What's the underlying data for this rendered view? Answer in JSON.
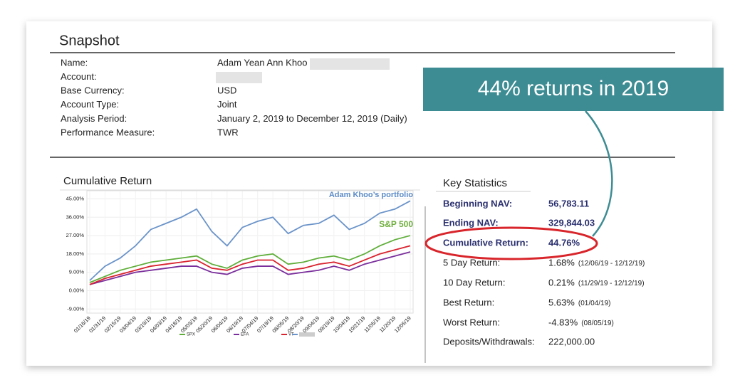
{
  "snapshot": {
    "title": "Snapshot",
    "fields": [
      {
        "label": "Name:",
        "value": "Adam Yean Ann Khoo"
      },
      {
        "label": "Account:"
      },
      {
        "label": "Base Currency:",
        "value": "USD"
      },
      {
        "label": "Account Type:",
        "value": "Joint"
      },
      {
        "label": "Analysis Period:",
        "value": "January 2, 2019 to December 12, 2019 (Daily)"
      },
      {
        "label": "Performance Measure:",
        "value": "TWR"
      }
    ]
  },
  "callout": "44% returns in 2019",
  "key_statistics": {
    "title": "Key Statistics",
    "rows": [
      {
        "label": "Beginning NAV:",
        "value": "56,783.11"
      },
      {
        "label": "Ending NAV:",
        "value": "329,844.03"
      },
      {
        "label": "Cumulative Return:",
        "value": "44.76%"
      },
      {
        "label": "5 Day Return:",
        "value": "1.68%",
        "note": "(12/06/19 - 12/12/19)"
      },
      {
        "label": "10 Day Return:",
        "value": "0.21%",
        "note": "(11/29/19 - 12/12/19)"
      },
      {
        "label": "Best Return:",
        "value": "5.63%",
        "note": "(01/04/19)"
      },
      {
        "label": "Worst Return:",
        "value": "-4.83%",
        "note": "(08/05/19)"
      },
      {
        "label": "Deposits/Withdrawals:",
        "value": "222,000.00"
      }
    ]
  },
  "chart_data": {
    "type": "line",
    "title": "Cumulative Return",
    "annotations": [
      {
        "text": "Adam Khoo’s portfolio",
        "color": "#5b8ac6"
      },
      {
        "text": "S&P 500",
        "color": "#6fae3e"
      }
    ],
    "x": [
      "01/16/19",
      "01/31/19",
      "02/15/19",
      "03/04/19",
      "03/19/19",
      "04/03/19",
      "04/18/19",
      "05/03/19",
      "05/20/19",
      "06/04/19",
      "06/19/19",
      "07/04/19",
      "07/19/19",
      "08/05/19",
      "08/20/19",
      "09/04/19",
      "09/19/19",
      "10/04/19",
      "10/21/19",
      "11/05/19",
      "11/20/19",
      "12/05/19"
    ],
    "ylim": [
      -11,
      49
    ],
    "yticks": [
      {
        "value": 45,
        "label": "45.00%"
      },
      {
        "value": 36,
        "label": "36.00%"
      },
      {
        "value": 27,
        "label": "27.00%"
      },
      {
        "value": 18,
        "label": "18.00%"
      },
      {
        "value": 9,
        "label": "9.00%"
      },
      {
        "value": 0,
        "label": "0.00%"
      },
      {
        "value": -9,
        "label": "-9.00%"
      }
    ],
    "series": [
      {
        "name": "SPX",
        "color": "#5fae3a",
        "values": [
          4,
          7,
          10,
          12,
          14,
          15,
          16,
          17,
          13,
          11,
          15,
          17,
          18,
          13,
          14,
          16,
          17,
          15,
          18,
          22,
          25,
          27
        ]
      },
      {
        "name": "EFA",
        "color": "#7a2e9c",
        "values": [
          3,
          5,
          7,
          9,
          10,
          11,
          12,
          12,
          9,
          8,
          11,
          12,
          12,
          8,
          9,
          10,
          12,
          10,
          13,
          15,
          17,
          19
        ]
      },
      {
        "name": "VT",
        "color": "#d9232e",
        "values": [
          3,
          6,
          8,
          10,
          12,
          13,
          14,
          15,
          11,
          10,
          13,
          15,
          15,
          10,
          11,
          13,
          14,
          12,
          15,
          18,
          20,
          22
        ]
      },
      {
        "color": "#6a93c9",
        "values": [
          5,
          12,
          16,
          22,
          30,
          33,
          36,
          40,
          29,
          22,
          31,
          34,
          36,
          28,
          32,
          33,
          37,
          30,
          33,
          38,
          40,
          44
        ]
      }
    ]
  }
}
